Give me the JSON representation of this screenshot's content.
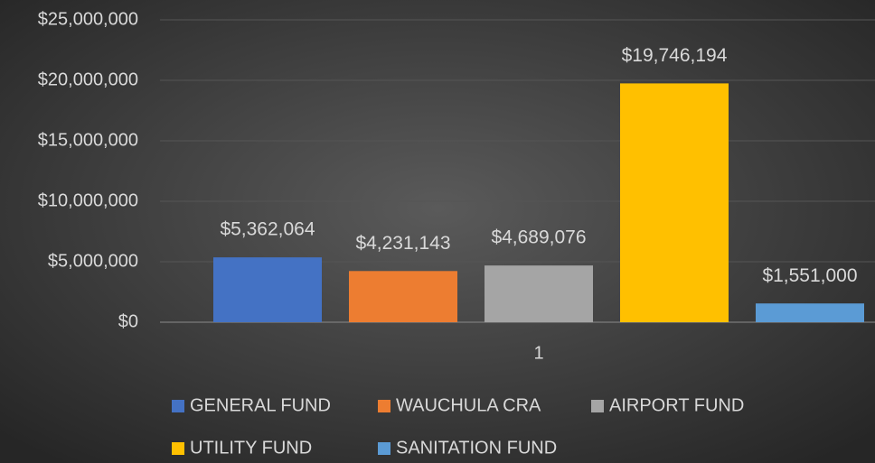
{
  "chart_data": {
    "type": "bar",
    "categories": [
      "1"
    ],
    "series": [
      {
        "name": "GENERAL FUND",
        "color": "#4472c4",
        "values": [
          5362064
        ],
        "value_labels": [
          "$5,362,064"
        ]
      },
      {
        "name": "WAUCHULA CRA",
        "color": "#ed7d31",
        "values": [
          4231143
        ],
        "value_labels": [
          "$4,231,143"
        ]
      },
      {
        "name": "AIRPORT FUND",
        "color": "#a5a5a5",
        "values": [
          4689076
        ],
        "value_labels": [
          "$4,689,076"
        ]
      },
      {
        "name": "UTILITY FUND",
        "color": "#ffc000",
        "values": [
          19746194
        ],
        "value_labels": [
          "$19,746,194"
        ]
      },
      {
        "name": "SANITATION FUND",
        "color": "#5b9bd5",
        "values": [
          1551000
        ],
        "value_labels": [
          "$1,551,000"
        ]
      }
    ],
    "ylim": [
      0,
      25000000
    ],
    "yticks": [
      {
        "value": 0,
        "label": "$0"
      },
      {
        "value": 5000000,
        "label": "$5,000,000"
      },
      {
        "value": 10000000,
        "label": "$10,000,000"
      },
      {
        "value": 15000000,
        "label": "$15,000,000"
      },
      {
        "value": 20000000,
        "label": "$20,000,000"
      },
      {
        "value": 25000000,
        "label": "$25,000,000"
      }
    ],
    "grid": true,
    "legend": "bottom"
  }
}
